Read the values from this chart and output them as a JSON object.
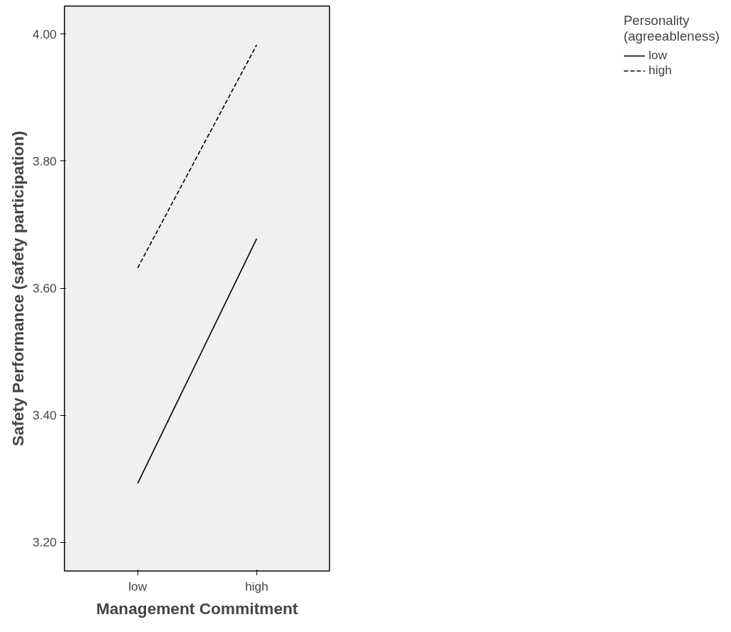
{
  "chart_data": {
    "type": "line",
    "xlabel": "Management Commitment",
    "ylabel": "Safety Performance (safety participation)",
    "legend_title": "Personality\n(agreeableness)",
    "categories": [
      "low",
      "high"
    ],
    "series": [
      {
        "name": "low",
        "color": "#000000",
        "line_style": "solid",
        "values": [
          3.293,
          3.678
        ]
      },
      {
        "name": "high",
        "color": "#000000",
        "line_style": "dashed",
        "values": [
          3.632,
          3.983
        ]
      }
    ],
    "ylim": [
      3.155,
      4.044
    ],
    "yticks": [
      {
        "value": 3.2,
        "label": "3.20"
      },
      {
        "value": 3.4,
        "label": "3.40"
      },
      {
        "value": 3.6,
        "label": "3.60"
      },
      {
        "value": 3.8,
        "label": "3.80"
      },
      {
        "value": 4.0,
        "label": "4.00"
      }
    ],
    "grid": false,
    "legend": "top right",
    "marker": "none"
  }
}
